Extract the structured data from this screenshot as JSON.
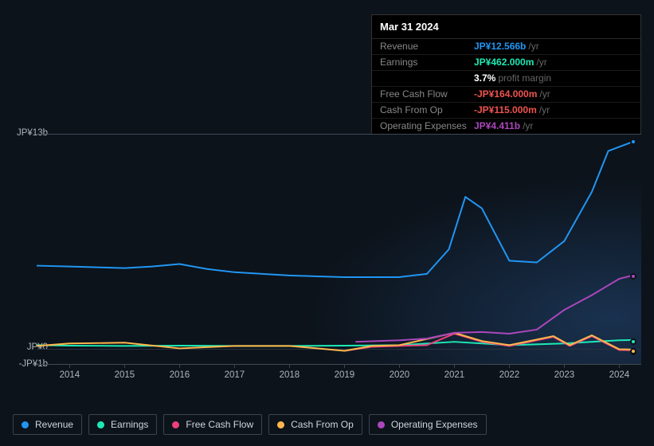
{
  "chart": {
    "type": "line",
    "y_axis": {
      "ticks": [
        {
          "value": 13,
          "label": "JP¥13b"
        },
        {
          "value": 0,
          "label": "JP¥0"
        },
        {
          "value": -1,
          "label": "-JP¥1b"
        }
      ],
      "min": -1,
      "max": 13
    },
    "x_axis": {
      "min": 2013.4,
      "max": 2024.4,
      "ticks": [
        2014,
        2015,
        2016,
        2017,
        2018,
        2019,
        2020,
        2021,
        2022,
        2023,
        2024
      ]
    },
    "plot_border_color": "#404a55",
    "grid_color": "#2a3340",
    "label_color": "#b0b5bb",
    "label_fontsize": 11.5,
    "background": "#0c131b",
    "line_width": 2,
    "series": [
      {
        "name": "Revenue",
        "color": "#2196f3",
        "data": [
          [
            2013.4,
            5.0
          ],
          [
            2014,
            4.95
          ],
          [
            2014.5,
            4.9
          ],
          [
            2015,
            4.85
          ],
          [
            2015.5,
            4.95
          ],
          [
            2016,
            5.1
          ],
          [
            2016.5,
            4.8
          ],
          [
            2017,
            4.6
          ],
          [
            2017.5,
            4.5
          ],
          [
            2018,
            4.4
          ],
          [
            2018.5,
            4.35
          ],
          [
            2019,
            4.3
          ],
          [
            2019.5,
            4.3
          ],
          [
            2020,
            4.3
          ],
          [
            2020.5,
            4.5
          ],
          [
            2020.9,
            6.0
          ],
          [
            2021.2,
            9.2
          ],
          [
            2021.5,
            8.5
          ],
          [
            2022,
            5.3
          ],
          [
            2022.5,
            5.2
          ],
          [
            2023,
            6.5
          ],
          [
            2023.5,
            9.5
          ],
          [
            2023.8,
            12.0
          ],
          [
            2024.25,
            12.566
          ]
        ]
      },
      {
        "name": "Earnings",
        "color": "#1de9b6",
        "data": [
          [
            2013.4,
            0.15
          ],
          [
            2014,
            0.12
          ],
          [
            2015,
            0.1
          ],
          [
            2016,
            0.12
          ],
          [
            2017,
            0.1
          ],
          [
            2018,
            0.1
          ],
          [
            2019,
            0.12
          ],
          [
            2020,
            0.15
          ],
          [
            2021,
            0.35
          ],
          [
            2022,
            0.15
          ],
          [
            2023,
            0.25
          ],
          [
            2024,
            0.45
          ],
          [
            2024.25,
            0.462
          ]
        ]
      },
      {
        "name": "Free Cash Flow",
        "color": "#ec407a",
        "data": [
          [
            2019,
            -0.2
          ],
          [
            2019.5,
            0.05
          ],
          [
            2020,
            0.1
          ],
          [
            2020.5,
            0.15
          ],
          [
            2021,
            0.85
          ],
          [
            2021.5,
            0.35
          ],
          [
            2022,
            0.1
          ],
          [
            2022.8,
            0.65
          ],
          [
            2023.1,
            0.1
          ],
          [
            2023.5,
            0.7
          ],
          [
            2024,
            -0.15
          ],
          [
            2024.25,
            -0.164
          ]
        ]
      },
      {
        "name": "Cash From Op",
        "color": "#ffb74d",
        "data": [
          [
            2013.4,
            0.1
          ],
          [
            2014,
            0.25
          ],
          [
            2015,
            0.3
          ],
          [
            2016,
            -0.05
          ],
          [
            2017,
            0.1
          ],
          [
            2018,
            0.1
          ],
          [
            2019,
            -0.2
          ],
          [
            2019.5,
            0.1
          ],
          [
            2020,
            0.15
          ],
          [
            2021,
            0.9
          ],
          [
            2021.5,
            0.4
          ],
          [
            2022,
            0.15
          ],
          [
            2022.8,
            0.7
          ],
          [
            2023.1,
            0.15
          ],
          [
            2023.5,
            0.75
          ],
          [
            2024,
            -0.1
          ],
          [
            2024.25,
            -0.115
          ]
        ]
      },
      {
        "name": "Operating Expenses",
        "color": "#ab47bc",
        "data": [
          [
            2019.2,
            0.35
          ],
          [
            2020,
            0.45
          ],
          [
            2020.5,
            0.55
          ],
          [
            2021,
            0.9
          ],
          [
            2021.5,
            0.95
          ],
          [
            2022,
            0.85
          ],
          [
            2022.5,
            1.1
          ],
          [
            2023,
            2.3
          ],
          [
            2023.5,
            3.2
          ],
          [
            2024,
            4.2
          ],
          [
            2024.25,
            4.411
          ]
        ]
      }
    ]
  },
  "tooltip": {
    "date": "Mar 31 2024",
    "rows": [
      {
        "label": "Revenue",
        "value": "JP¥12.566b",
        "color": "#2196f3",
        "suffix": "/yr"
      },
      {
        "label": "Earnings",
        "value": "JP¥462.000m",
        "color": "#1de9b6",
        "suffix": "/yr"
      },
      {
        "label": "",
        "value": "3.7%",
        "color": "#ffffff",
        "suffix": "profit margin"
      },
      {
        "label": "Free Cash Flow",
        "value": "-JP¥164.000m",
        "color": "#ef5350",
        "suffix": "/yr"
      },
      {
        "label": "Cash From Op",
        "value": "-JP¥115.000m",
        "color": "#ef5350",
        "suffix": "/yr"
      },
      {
        "label": "Operating Expenses",
        "value": "JP¥4.411b",
        "color": "#ab47bc",
        "suffix": "/yr"
      }
    ]
  },
  "legend": {
    "items": [
      {
        "label": "Revenue",
        "color": "#2196f3"
      },
      {
        "label": "Earnings",
        "color": "#1de9b6"
      },
      {
        "label": "Free Cash Flow",
        "color": "#ec407a"
      },
      {
        "label": "Cash From Op",
        "color": "#ffb74d"
      },
      {
        "label": "Operating Expenses",
        "color": "#ab47bc"
      }
    ]
  }
}
